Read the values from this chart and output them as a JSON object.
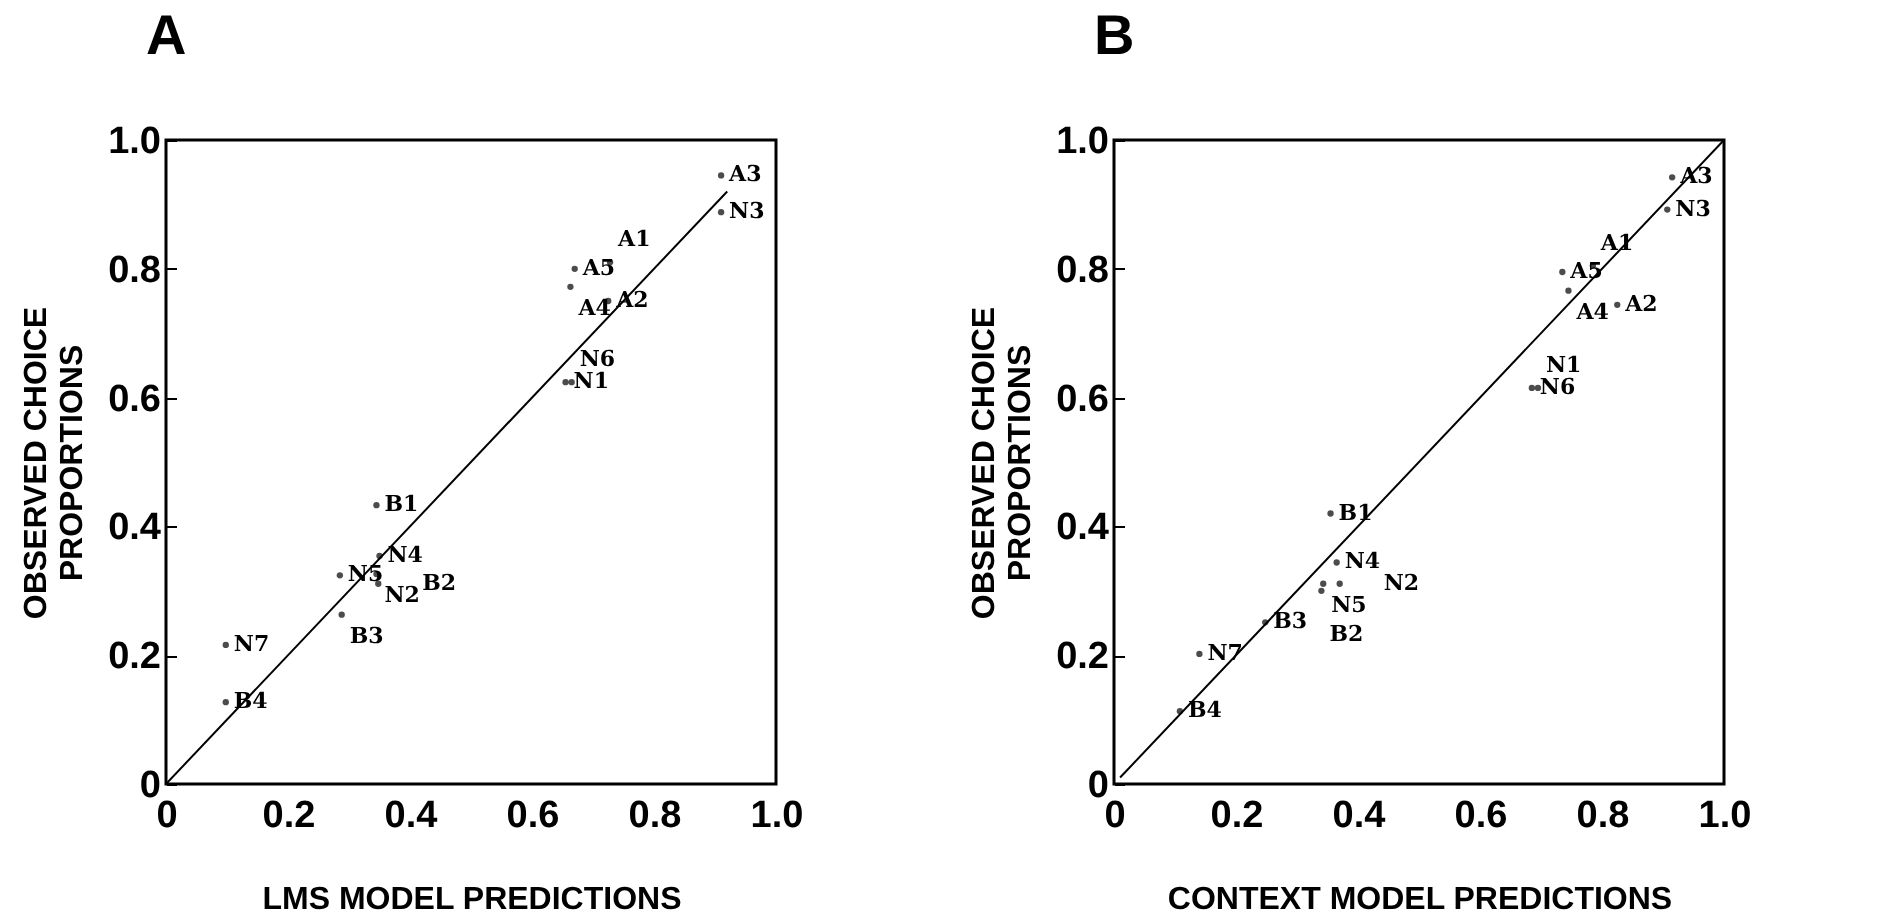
{
  "chart_data": [
    {
      "type": "scatter",
      "title": "A",
      "xlabel": "LMS MODEL PREDICTIONS",
      "ylabel": "OBSERVED CHOICE\nPROPORTIONS",
      "xlim": [
        0,
        1
      ],
      "ylim": [
        0,
        1
      ],
      "xticks": [
        0,
        0.2,
        0.4,
        0.6,
        0.8,
        {
          "value": 1,
          "label": "1.0"
        }
      ],
      "yticks": [
        0,
        0.2,
        0.4,
        0.6,
        0.8,
        {
          "value": 1,
          "label": "1.0"
        }
      ],
      "grid": false,
      "legend": false,
      "marker": "circle",
      "series": [
        {
          "type": "line",
          "marker": "none",
          "color": "#000000",
          "x": [
            0,
            0.92
          ],
          "values": [
            0,
            0.92
          ]
        },
        {
          "name": "A3",
          "color": "#000000",
          "x": [
            0.91
          ],
          "values": [
            0.945
          ]
        },
        {
          "name": "N3",
          "color": "#000000",
          "x": [
            0.91
          ],
          "values": [
            0.888
          ]
        },
        {
          "name": "A5",
          "color": "#000000",
          "x": [
            0.67
          ],
          "values": [
            0.8
          ]
        },
        {
          "name": "A1",
          "color": "#000000",
          "x": [
            0.728
          ],
          "values": [
            0.81
          ]
        },
        {
          "name": "A4",
          "color": "#000000",
          "x": [
            0.663
          ],
          "values": [
            0.772
          ]
        },
        {
          "name": "A2",
          "color": "#000000",
          "x": [
            0.725
          ],
          "values": [
            0.75
          ]
        },
        {
          "name": "N1",
          "color": "#000000",
          "x": [
            0.655
          ],
          "values": [
            0.624
          ]
        },
        {
          "name": "N6",
          "color": "#000000",
          "x": [
            0.665
          ],
          "values": [
            0.624
          ]
        },
        {
          "name": "B1",
          "color": "#000000",
          "x": [
            0.345
          ],
          "values": [
            0.433
          ]
        },
        {
          "name": "N4",
          "color": "#000000",
          "x": [
            0.35
          ],
          "values": [
            0.354
          ]
        },
        {
          "name": "N5",
          "color": "#000000",
          "x": [
            0.285
          ],
          "values": [
            0.324
          ]
        },
        {
          "name": "N2",
          "color": "#000000",
          "x": [
            0.345
          ],
          "values": [
            0.326
          ]
        },
        {
          "name": "B2",
          "color": "#000000",
          "x": [
            0.348
          ],
          "values": [
            0.311
          ]
        },
        {
          "name": "B3",
          "color": "#000000",
          "x": [
            0.288
          ],
          "values": [
            0.263
          ]
        },
        {
          "name": "N7",
          "color": "#000000",
          "x": [
            0.098
          ],
          "values": [
            0.216
          ]
        },
        {
          "name": "B4",
          "color": "#000000",
          "x": [
            0.098
          ],
          "values": [
            0.127
          ]
        }
      ]
    },
    {
      "type": "scatter",
      "title": "B",
      "xlabel": "CONTEXT MODEL PREDICTIONS",
      "ylabel": "OBSERVED CHOICE\nPROPORTIONS",
      "xlim": [
        0,
        1
      ],
      "ylim": [
        0,
        1
      ],
      "xticks": [
        0,
        0.2,
        0.4,
        0.6,
        0.8,
        {
          "value": 1,
          "label": "1.0"
        }
      ],
      "yticks": [
        0,
        0.2,
        0.4,
        0.6,
        0.8,
        {
          "value": 1,
          "label": "1.0"
        }
      ],
      "grid": false,
      "legend": false,
      "marker": "circle",
      "series": [
        {
          "type": "line",
          "marker": "none",
          "color": "#000000",
          "x": [
            0.01,
            1
          ],
          "values": [
            0.01,
            1
          ]
        },
        {
          "name": "A3",
          "color": "#000000",
          "x": [
            0.915
          ],
          "values": [
            0.942
          ]
        },
        {
          "name": "N3",
          "color": "#000000",
          "x": [
            0.907
          ],
          "values": [
            0.892
          ]
        },
        {
          "name": "A5",
          "color": "#000000",
          "x": [
            0.735
          ],
          "values": [
            0.795
          ]
        },
        {
          "name": "A1",
          "color": "#000000",
          "x": [
            0.785
          ],
          "values": [
            0.805
          ]
        },
        {
          "name": "A4",
          "color": "#000000",
          "x": [
            0.745
          ],
          "values": [
            0.766
          ]
        },
        {
          "name": "A2",
          "color": "#000000",
          "x": [
            0.825
          ],
          "values": [
            0.744
          ]
        },
        {
          "name": "N6",
          "color": "#000000",
          "x": [
            0.685
          ],
          "values": [
            0.615
          ]
        },
        {
          "name": "N1",
          "color": "#000000",
          "x": [
            0.695
          ],
          "values": [
            0.615
          ]
        },
        {
          "name": "B1",
          "color": "#000000",
          "x": [
            0.355
          ],
          "values": [
            0.42
          ]
        },
        {
          "name": "N4",
          "color": "#000000",
          "x": [
            0.365
          ],
          "values": [
            0.344
          ]
        },
        {
          "name": "N5",
          "color": "#000000",
          "x": [
            0.343
          ],
          "values": [
            0.311
          ]
        },
        {
          "name": "N2",
          "color": "#000000",
          "x": [
            0.37
          ],
          "values": [
            0.311
          ]
        },
        {
          "name": "B2",
          "color": "#000000",
          "x": [
            0.34
          ],
          "values": [
            0.3
          ]
        },
        {
          "name": "B3",
          "color": "#000000",
          "x": [
            0.248
          ],
          "values": [
            0.251
          ]
        },
        {
          "name": "N7",
          "color": "#000000",
          "x": [
            0.14
          ],
          "values": [
            0.202
          ]
        },
        {
          "name": "B4",
          "color": "#000000",
          "x": [
            0.108
          ],
          "values": [
            0.113
          ]
        }
      ]
    }
  ]
}
